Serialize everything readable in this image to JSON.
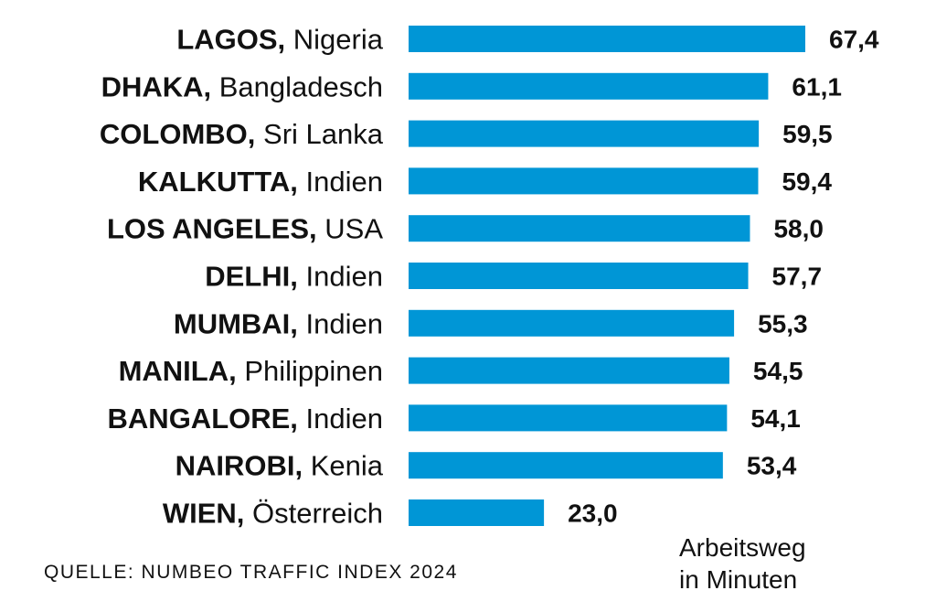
{
  "chart_data": {
    "type": "bar",
    "orientation": "horizontal",
    "categories": [
      {
        "city": "LAGOS,",
        "country": "Nigeria"
      },
      {
        "city": "DHAKA,",
        "country": "Bangladesch"
      },
      {
        "city": "COLOMBO,",
        "country": "Sri Lanka"
      },
      {
        "city": "KALKUTTA,",
        "country": "Indien"
      },
      {
        "city": "LOS ANGELES,",
        "country": "USA"
      },
      {
        "city": "DELHI,",
        "country": "Indien"
      },
      {
        "city": "MUMBAI,",
        "country": "Indien"
      },
      {
        "city": "MANILA,",
        "country": "Philippinen"
      },
      {
        "city": "BANGALORE,",
        "country": "Indien"
      },
      {
        "city": "NAIROBI,",
        "country": "Kenia"
      },
      {
        "city": "WIEN,",
        "country": "Österreich"
      }
    ],
    "values": [
      67.4,
      61.1,
      59.5,
      59.4,
      58.0,
      57.7,
      55.3,
      54.5,
      54.1,
      53.4,
      23.0
    ],
    "value_labels": [
      "67,4",
      "61,1",
      "59,5",
      "59,4",
      "58,0",
      "57,7",
      "55,3",
      "54,5",
      "54,1",
      "53,4",
      "23,0"
    ],
    "bar_color": "#0096d6",
    "unit_label_line1": "Arbeitsweg",
    "unit_label_line2": "in Minuten",
    "xlim": [
      0,
      67.4
    ]
  },
  "source": "QUELLE: NUMBEO TRAFFIC INDEX 2024"
}
